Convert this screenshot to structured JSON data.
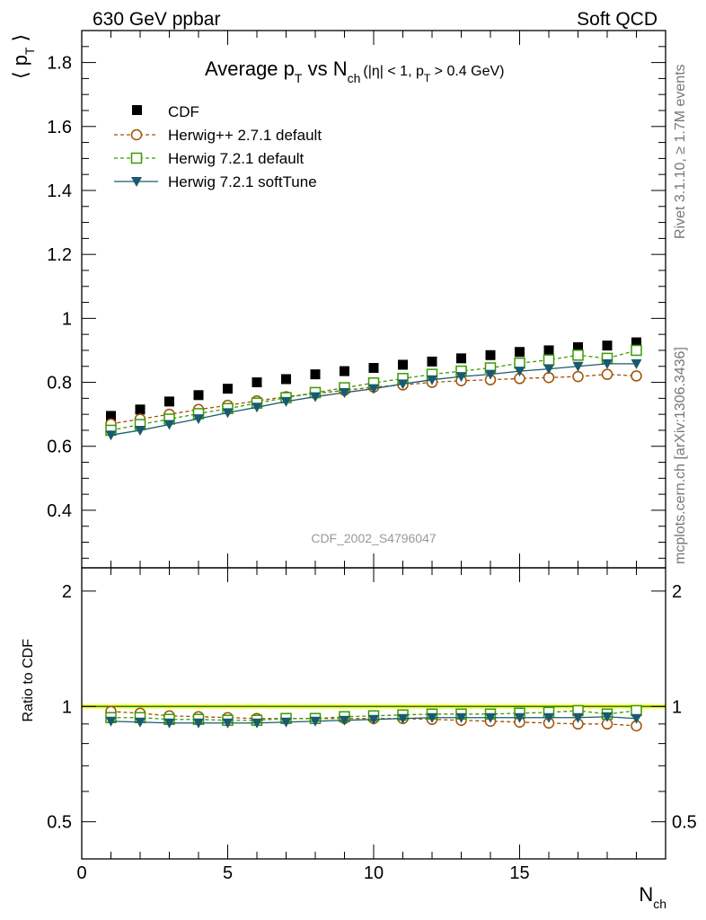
{
  "header": {
    "left": "630 GeV ppbar",
    "right": "Soft QCD"
  },
  "side": {
    "rivet": "Rivet 3.1.10, ≥ 1.7M events",
    "mcplots": "mcplots.cern.ch [arXiv:1306.3436]"
  },
  "analysis_label": "CDF_2002_S4796047",
  "chart_data": [
    {
      "type": "scatter",
      "title": "Average p_T vs N_ch (|η| < 1, p_T > 0.4 GeV)",
      "xlabel": "N_ch",
      "ylabel": "⟨ p_T ⟩",
      "xlim": [
        0,
        20
      ],
      "ylim": [
        0.22,
        1.9
      ],
      "xticks": [
        0,
        5,
        10,
        15
      ],
      "yticks": [
        0.4,
        0.6,
        0.8,
        1,
        1.2,
        1.4,
        1.6,
        1.8
      ],
      "x": [
        1,
        2,
        3,
        4,
        5,
        6,
        7,
        8,
        9,
        10,
        11,
        12,
        13,
        14,
        15,
        16,
        17,
        18,
        19
      ],
      "legend_position": "top-left",
      "series": [
        {
          "name": "CDF",
          "color": "#000000",
          "marker": "square-filled",
          "line": "none",
          "values": [
            0.695,
            0.715,
            0.74,
            0.76,
            0.78,
            0.8,
            0.81,
            0.825,
            0.835,
            0.845,
            0.855,
            0.865,
            0.875,
            0.885,
            0.895,
            0.9,
            0.91,
            0.915,
            0.925
          ]
        },
        {
          "name": "Herwig++ 2.7.1 default",
          "color": "#a05000",
          "marker": "circle-open",
          "line": "dashed",
          "values": [
            0.67,
            0.685,
            0.7,
            0.715,
            0.728,
            0.742,
            0.755,
            0.765,
            0.775,
            0.785,
            0.792,
            0.8,
            0.805,
            0.808,
            0.812,
            0.815,
            0.818,
            0.825,
            0.82
          ]
        },
        {
          "name": "Herwig 7.2.1 default",
          "color": "#3a9b00",
          "marker": "square-open",
          "line": "dashed",
          "values": [
            0.65,
            0.668,
            0.685,
            0.702,
            0.718,
            0.735,
            0.752,
            0.768,
            0.783,
            0.798,
            0.812,
            0.825,
            0.835,
            0.845,
            0.86,
            0.87,
            0.885,
            0.875,
            0.9
          ]
        },
        {
          "name": "Herwig 7.2.1 softTune",
          "color": "#1a5a6e",
          "marker": "triangle-down-filled",
          "line": "solid",
          "values": [
            0.635,
            0.65,
            0.668,
            0.686,
            0.705,
            0.722,
            0.74,
            0.755,
            0.768,
            0.78,
            0.795,
            0.808,
            0.818,
            0.825,
            0.835,
            0.842,
            0.85,
            0.858,
            0.858
          ]
        }
      ]
    },
    {
      "type": "scatter",
      "title": "",
      "xlabel": "N_ch",
      "ylabel": "Ratio to CDF",
      "xlim": [
        0,
        20
      ],
      "ylim": [
        0.4,
        2.3
      ],
      "y_scale": "log",
      "yticks": [
        0.5,
        1,
        2
      ],
      "x": [
        1,
        2,
        3,
        4,
        5,
        6,
        7,
        8,
        9,
        10,
        11,
        12,
        13,
        14,
        15,
        16,
        17,
        18,
        19
      ],
      "reference_band": {
        "color": "#ffff66",
        "line_color": "#2b7a00",
        "low": 0.985,
        "high": 1.015
      },
      "series": [
        {
          "name": "Herwig++ 2.7.1 default",
          "color": "#a05000",
          "marker": "circle-open",
          "line": "dashed",
          "values": [
            0.97,
            0.96,
            0.945,
            0.94,
            0.935,
            0.93,
            0.93,
            0.93,
            0.93,
            0.93,
            0.93,
            0.925,
            0.92,
            0.915,
            0.91,
            0.905,
            0.9,
            0.9,
            0.89
          ]
        },
        {
          "name": "Herwig 7.2.1 default",
          "color": "#3a9b00",
          "marker": "square-open",
          "line": "dashed",
          "values": [
            0.935,
            0.935,
            0.925,
            0.925,
            0.92,
            0.92,
            0.93,
            0.93,
            0.94,
            0.945,
            0.95,
            0.955,
            0.955,
            0.955,
            0.96,
            0.965,
            0.975,
            0.955,
            0.975
          ]
        },
        {
          "name": "Herwig 7.2.1 softTune",
          "color": "#1a5a6e",
          "marker": "triangle-down-filled",
          "line": "solid",
          "values": [
            0.915,
            0.91,
            0.905,
            0.905,
            0.905,
            0.905,
            0.91,
            0.915,
            0.92,
            0.925,
            0.93,
            0.935,
            0.935,
            0.935,
            0.935,
            0.935,
            0.935,
            0.94,
            0.93
          ]
        }
      ]
    }
  ]
}
